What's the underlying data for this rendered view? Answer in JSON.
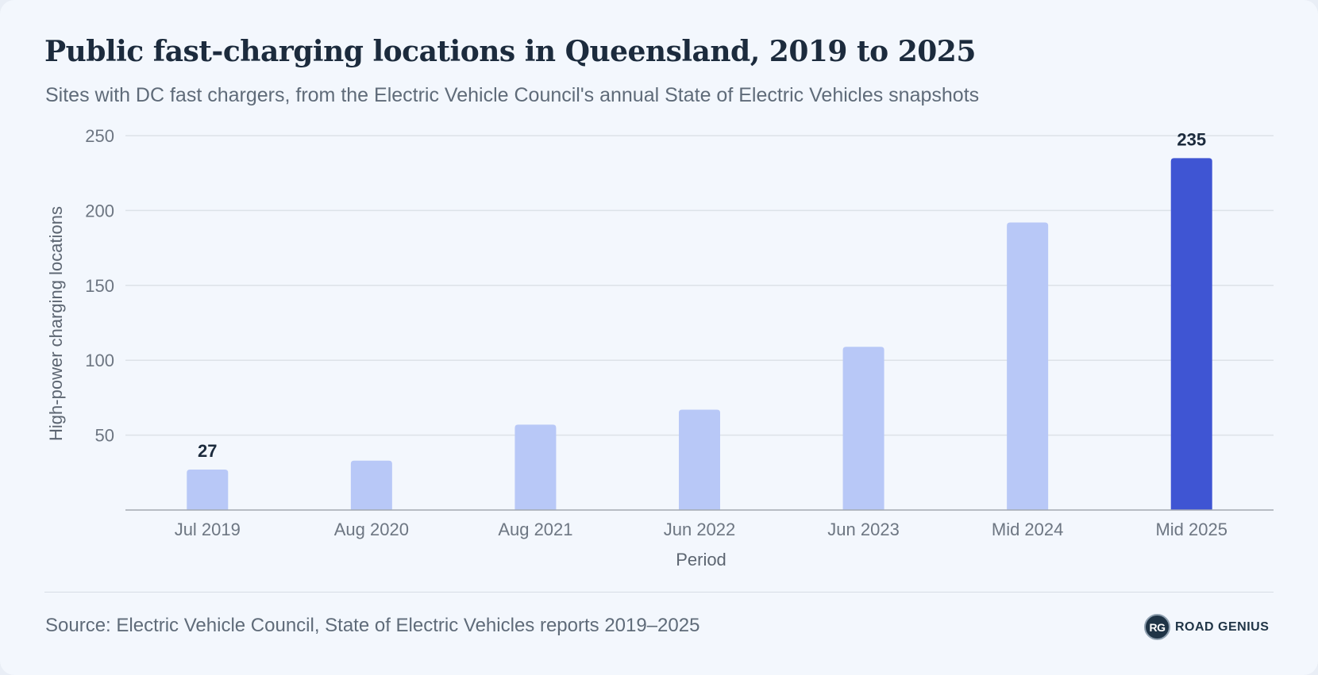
{
  "title": "Public fast-charging locations in Queensland, 2019 to 2025",
  "subtitle": "Sites with DC fast chargers, from the Electric Vehicle Council's annual State of Electric Vehicles snapshots",
  "source": "Source: Electric Vehicle Council, State of Electric Vehicles reports 2019–2025",
  "brand": {
    "badge": "RG",
    "name": "ROAD GENIUS"
  },
  "colors": {
    "bar": "#b8c8f7",
    "bar_highlight": "#3f55d3",
    "grid": "#dde2e8",
    "axis": "#a3a9b1",
    "background": "#f3f7fd"
  },
  "chart_data": {
    "type": "bar",
    "xlabel": "Period",
    "ylabel": "High-power charging locations",
    "categories": [
      "Jul 2019",
      "Aug 2020",
      "Aug 2021",
      "Jun 2022",
      "Jun 2023",
      "Mid 2024",
      "Mid 2025"
    ],
    "values": [
      27,
      33,
      57,
      67,
      109,
      192,
      235
    ],
    "highlight_index": 6,
    "data_labels": [
      {
        "index": 0,
        "text": "27"
      },
      {
        "index": 6,
        "text": "235"
      }
    ],
    "ylim": [
      0,
      250
    ],
    "yticks": [
      50,
      100,
      150,
      200,
      250
    ],
    "grid": true
  }
}
